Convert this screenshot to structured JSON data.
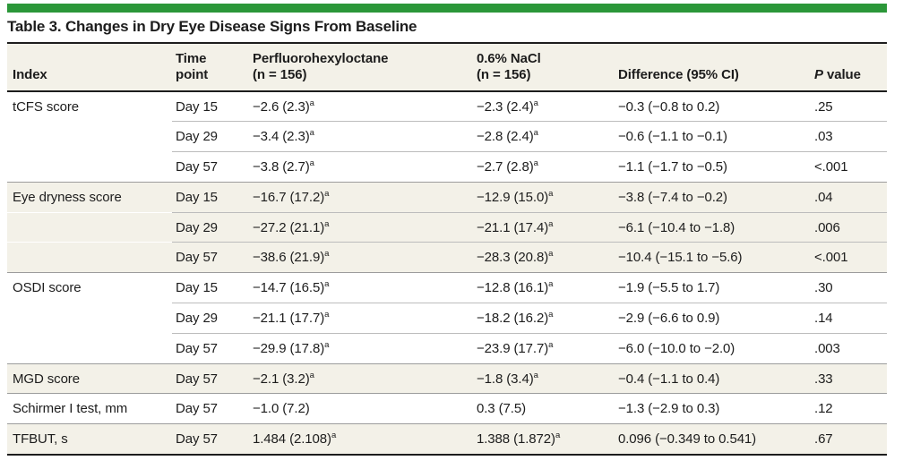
{
  "title": "Table 3. Changes in Dry Eye Disease Signs From Baseline",
  "accent_color": "#2b9739",
  "shade_color": "#f3f1e8",
  "header": {
    "index": "Index",
    "time_point": [
      "Time",
      "point"
    ],
    "drug": [
      "Perfluorohexyloctane",
      "(n = 156)"
    ],
    "nacl": [
      "0.6% NaCl",
      "(n = 156)"
    ],
    "difference": "Difference (95% CI)",
    "p_italic": "P",
    "p_rest": " value"
  },
  "rows": [
    {
      "index": "tCFS score",
      "time": "Day 15",
      "drug": "−2.6 (2.3)",
      "drug_sup": "a",
      "nacl": "−2.3 (2.4)",
      "nacl_sup": "a",
      "diff": "−0.3 (−0.8 to 0.2)",
      "p": ".25"
    },
    {
      "index": "",
      "time": "Day 29",
      "drug": "−3.4 (2.3)",
      "drug_sup": "a",
      "nacl": "−2.8 (2.4)",
      "nacl_sup": "a",
      "diff": "−0.6 (−1.1 to −0.1)",
      "p": ".03"
    },
    {
      "index": "",
      "time": "Day 57",
      "drug": "−3.8 (2.7)",
      "drug_sup": "a",
      "nacl": "−2.7 (2.8)",
      "nacl_sup": "a",
      "diff": "−1.1 (−1.7 to −0.5)",
      "p": "<.001"
    },
    {
      "index": "Eye dryness score",
      "time": "Day 15",
      "drug": "−16.7 (17.2)",
      "drug_sup": "a",
      "nacl": "−12.9 (15.0)",
      "nacl_sup": "a",
      "diff": "−3.8 (−7.4 to −0.2)",
      "p": ".04"
    },
    {
      "index": "",
      "time": "Day 29",
      "drug": "−27.2 (21.1)",
      "drug_sup": "a",
      "nacl": "−21.1 (17.4)",
      "nacl_sup": "a",
      "diff": "−6.1 (−10.4 to −1.8)",
      "p": ".006"
    },
    {
      "index": "",
      "time": "Day 57",
      "drug": "−38.6 (21.9)",
      "drug_sup": "a",
      "nacl": "−28.3 (20.8)",
      "nacl_sup": "a",
      "diff": "−10.4 (−15.1 to −5.6)",
      "p": "<.001"
    },
    {
      "index": "OSDI score",
      "time": "Day 15",
      "drug": "−14.7 (16.5)",
      "drug_sup": "a",
      "nacl": "−12.8 (16.1)",
      "nacl_sup": "a",
      "diff": "−1.9 (−5.5 to 1.7)",
      "p": ".30"
    },
    {
      "index": "",
      "time": "Day 29",
      "drug": "−21.1 (17.7)",
      "drug_sup": "a",
      "nacl": "−18.2 (16.2)",
      "nacl_sup": "a",
      "diff": "−2.9 (−6.6 to 0.9)",
      "p": ".14"
    },
    {
      "index": "",
      "time": "Day 57",
      "drug": "−29.9 (17.8)",
      "drug_sup": "a",
      "nacl": "−23.9 (17.7)",
      "nacl_sup": "a",
      "diff": "−6.0 (−10.0 to −2.0)",
      "p": ".003"
    },
    {
      "index": "MGD score",
      "time": "Day 57",
      "drug": "−2.1 (3.2)",
      "drug_sup": "a",
      "nacl": "−1.8 (3.4)",
      "nacl_sup": "a",
      "diff": "−0.4 (−1.1 to 0.4)",
      "p": ".33"
    },
    {
      "index": "Schirmer I test, mm",
      "time": "Day 57",
      "drug": "−1.0 (7.2)",
      "drug_sup": "",
      "nacl": "0.3 (7.5)",
      "nacl_sup": "",
      "diff": "−1.3 (−2.9 to 0.3)",
      "p": ".12"
    },
    {
      "index": "TFBUT, s",
      "time": "Day 57",
      "drug": "1.484 (2.108)",
      "drug_sup": "a",
      "nacl": "1.388 (1.872)",
      "nacl_sup": "a",
      "diff": "0.096 (−0.349 to 0.541)",
      "p": ".67"
    }
  ]
}
